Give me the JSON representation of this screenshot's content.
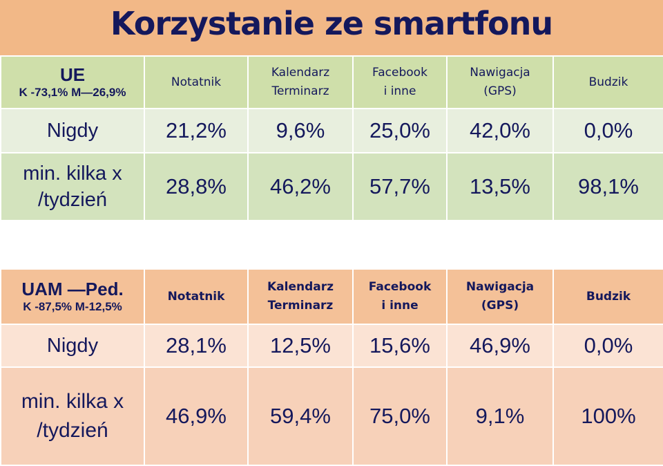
{
  "title": "Korzystanie ze smartfonu",
  "columns": [
    "Notatnik",
    "Kalendarz Terminarz",
    "Facebook i inne",
    "Nawigacja (GPS)",
    "Budzik"
  ],
  "columns_lines": [
    [
      "Notatnik"
    ],
    [
      "Kalendarz",
      "Terminarz"
    ],
    [
      "Facebook",
      "i inne"
    ],
    [
      "Nawigacja",
      "(GPS)"
    ],
    [
      "Budzik"
    ]
  ],
  "table_ue": {
    "label": "UE",
    "sublabel": "K -73,1% M—26,9%",
    "rows": [
      {
        "label": "Nigdy",
        "values": [
          "21,2%",
          "9,6%",
          "25,0%",
          "42,0%",
          "0,0%"
        ]
      },
      {
        "label_lines": [
          "min. kilka x",
          "/tydzień"
        ],
        "values": [
          "28,8%",
          "46,2%",
          "57,7%",
          "13,5%",
          "98,1%"
        ]
      }
    ]
  },
  "table_uam": {
    "label": "UAM —Ped.",
    "sublabel": "K -87,5% M-12,5%",
    "rows": [
      {
        "label": "Nigdy",
        "values": [
          "28,1%",
          "12,5%",
          "15,6%",
          "46,9%",
          "0,0%"
        ]
      },
      {
        "label_lines": [
          "min. kilka x",
          "/tydzień"
        ],
        "values": [
          "46,9%",
          "59,4%",
          "75,0%",
          "9,1%",
          "100%"
        ]
      }
    ]
  },
  "colors": {
    "title_bg": "#f2b887",
    "text": "#14185c",
    "green_header": "#cfdfaa",
    "green_light": "#e8efde",
    "green_mid": "#d3e3bd",
    "orange_header": "#f4c198",
    "orange_light": "#fbe3d4",
    "orange_mid": "#f7d1b9"
  }
}
